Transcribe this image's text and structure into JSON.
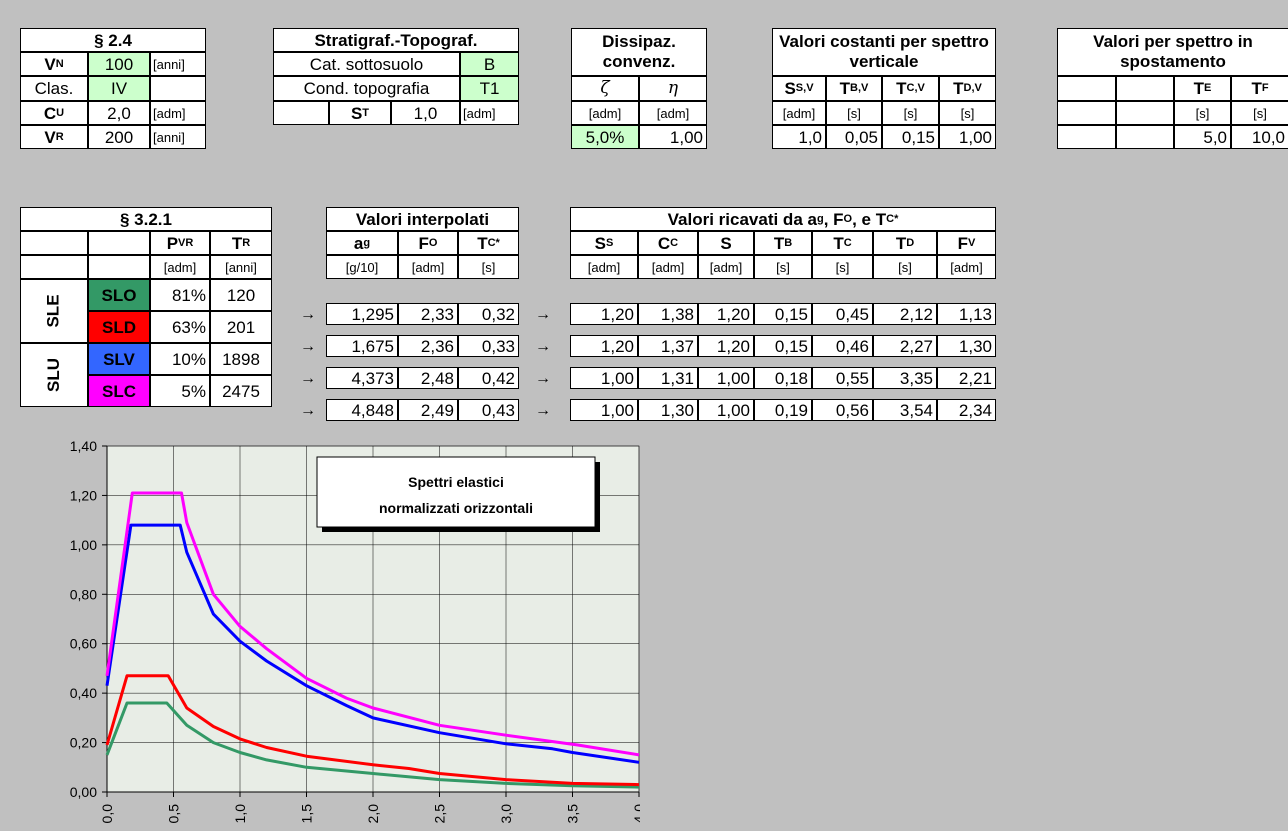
{
  "t1": {
    "title": "§ 2.4",
    "rows": [
      {
        "label": "V",
        "sub": "N",
        "value": "100",
        "unit": "[anni]"
      },
      {
        "label": "Clas.",
        "sub": "",
        "value": "IV",
        "unit": ""
      },
      {
        "label": "C",
        "sub": "U",
        "value": "2,0",
        "unit": "[adm]"
      },
      {
        "label": "V",
        "sub": "R",
        "value": "200",
        "unit": "[anni]"
      }
    ]
  },
  "t2": {
    "title": "Stratigraf.-Topograf.",
    "cat_label": "Cat. sottosuolo",
    "cat_value": "B",
    "cond_label": "Cond. topografia",
    "cond_value": "T1",
    "st_label": "S",
    "st_sub": "T",
    "st_value": "1,0",
    "st_unit": "[adm]"
  },
  "t3": {
    "title": "Dissipaz. convenz.",
    "col1": "ζ",
    "col2": "η",
    "unit1": "[adm]",
    "unit2": "[adm]",
    "val1": "5,0%",
    "val2": "1,00"
  },
  "t4": {
    "title": "Valori costanti per spettro verticale",
    "headers": [
      {
        "l": "S",
        "s": "S,V"
      },
      {
        "l": "T",
        "s": "B,V"
      },
      {
        "l": "T",
        "s": "C,V"
      },
      {
        "l": "T",
        "s": "D,V"
      }
    ],
    "units": [
      "[adm]",
      "[s]",
      "[s]",
      "[s]"
    ],
    "values": [
      "1,0",
      "0,05",
      "0,15",
      "1,00"
    ]
  },
  "t5": {
    "title": "Valori per spettro in spostamento",
    "te_label": "T",
    "te_sub": "E",
    "tf_label": "T",
    "tf_sub": "F",
    "te_unit": "[s]",
    "tf_unit": "[s]",
    "te_value": "5,0",
    "tf_value": "10,0"
  },
  "t6": {
    "title": "§ 3.2.1",
    "pvr_label": "P",
    "pvr_sub": "VR",
    "tr_label": "T",
    "tr_sub": "R",
    "pvr_unit": "[adm]",
    "tr_unit": "[anni]",
    "sle_label": "SLE",
    "slu_label": "SLU",
    "rows": [
      {
        "state": "SLO",
        "color": "#339966",
        "pvr": "81%",
        "tr": "120"
      },
      {
        "state": "SLD",
        "color": "#ff0000",
        "pvr": "63%",
        "tr": "201"
      },
      {
        "state": "SLV",
        "color": "#3366ff",
        "pvr": "10%",
        "tr": "1898"
      },
      {
        "state": "SLC",
        "color": "#ff00ff",
        "pvr": "5%",
        "tr": "2475"
      }
    ]
  },
  "arrow": "→",
  "t7": {
    "title": "Valori interpolati",
    "headers": [
      {
        "l": "a",
        "s": "g",
        "sup": ""
      },
      {
        "l": "F",
        "s": "O",
        "sup": ""
      },
      {
        "l": "T",
        "s": "C",
        "sup": "*"
      }
    ],
    "units": [
      "[g/10]",
      "[adm]",
      "[s]"
    ],
    "rows": [
      [
        "1,295",
        "2,33",
        "0,32"
      ],
      [
        "1,675",
        "2,36",
        "0,33"
      ],
      [
        "4,373",
        "2,48",
        "0,42"
      ],
      [
        "4,848",
        "2,49",
        "0,43"
      ]
    ]
  },
  "t8": {
    "title_main": "Valori ricavati da a",
    "title_sub1": "g",
    "title_mid": ", F",
    "title_sub2": "O",
    "title_mid2": ", e T",
    "title_sub3": "C",
    "title_sup": "*",
    "headers": [
      {
        "l": "S",
        "s": "S"
      },
      {
        "l": "C",
        "s": "C"
      },
      {
        "l": "S",
        "s": ""
      },
      {
        "l": "T",
        "s": "B"
      },
      {
        "l": "T",
        "s": "C"
      },
      {
        "l": "T",
        "s": "D"
      },
      {
        "l": "F",
        "s": "V"
      }
    ],
    "units": [
      "[adm]",
      "[adm]",
      "[adm]",
      "[s]",
      "[s]",
      "[s]",
      "[adm]"
    ],
    "rows": [
      [
        "1,20",
        "1,38",
        "1,20",
        "0,15",
        "0,45",
        "2,12",
        "1,13"
      ],
      [
        "1,20",
        "1,37",
        "1,20",
        "0,15",
        "0,46",
        "2,27",
        "1,30"
      ],
      [
        "1,00",
        "1,31",
        "1,00",
        "0,18",
        "0,55",
        "3,35",
        "2,21"
      ],
      [
        "1,00",
        "1,30",
        "1,00",
        "0,19",
        "0,56",
        "3,54",
        "2,34"
      ]
    ]
  },
  "chart_data": {
    "type": "line",
    "title": "Spettri elastici normalizzati orizzontali",
    "xlim": [
      0,
      4
    ],
    "ylim": [
      0,
      1.4
    ],
    "x_ticks": [
      "0,0",
      "0,5",
      "1,0",
      "1,5",
      "2,0",
      "2,5",
      "3,0",
      "3,5",
      "4,0"
    ],
    "y_ticks": [
      "0,00",
      "0,20",
      "0,40",
      "0,60",
      "0,80",
      "1,00",
      "1,20",
      "1,40"
    ],
    "grid": true,
    "series": [
      {
        "color": "#339966",
        "x": [
          0,
          0.15,
          0.45,
          0.6,
          0.8,
          1.0,
          1.2,
          1.5,
          2.0,
          2.5,
          3.0,
          3.5,
          4.0
        ],
        "y": [
          0.15,
          0.36,
          0.36,
          0.27,
          0.2,
          0.16,
          0.13,
          0.1,
          0.075,
          0.05,
          0.035,
          0.025,
          0.02
        ]
      },
      {
        "color": "#ff0000",
        "x": [
          0,
          0.15,
          0.46,
          0.6,
          0.8,
          1.0,
          1.2,
          1.5,
          2.0,
          2.27,
          2.5,
          3.0,
          3.5,
          4.0
        ],
        "y": [
          0.19,
          0.47,
          0.47,
          0.34,
          0.265,
          0.215,
          0.18,
          0.145,
          0.11,
          0.095,
          0.075,
          0.05,
          0.035,
          0.03
        ]
      },
      {
        "color": "#0000ff",
        "x": [
          0,
          0.18,
          0.55,
          0.6,
          0.8,
          1.0,
          1.2,
          1.5,
          1.8,
          2.0,
          2.5,
          3.0,
          3.35,
          3.5,
          4.0
        ],
        "y": [
          0.43,
          1.08,
          1.08,
          0.97,
          0.72,
          0.61,
          0.53,
          0.43,
          0.35,
          0.3,
          0.24,
          0.195,
          0.175,
          0.16,
          0.12
        ]
      },
      {
        "color": "#ff00ff",
        "x": [
          0,
          0.19,
          0.56,
          0.6,
          0.8,
          1.0,
          1.2,
          1.5,
          1.8,
          2.0,
          2.5,
          3.0,
          3.54,
          4.0
        ],
        "y": [
          0.47,
          1.21,
          1.21,
          1.09,
          0.8,
          0.67,
          0.58,
          0.46,
          0.38,
          0.34,
          0.27,
          0.23,
          0.19,
          0.15
        ]
      }
    ]
  }
}
